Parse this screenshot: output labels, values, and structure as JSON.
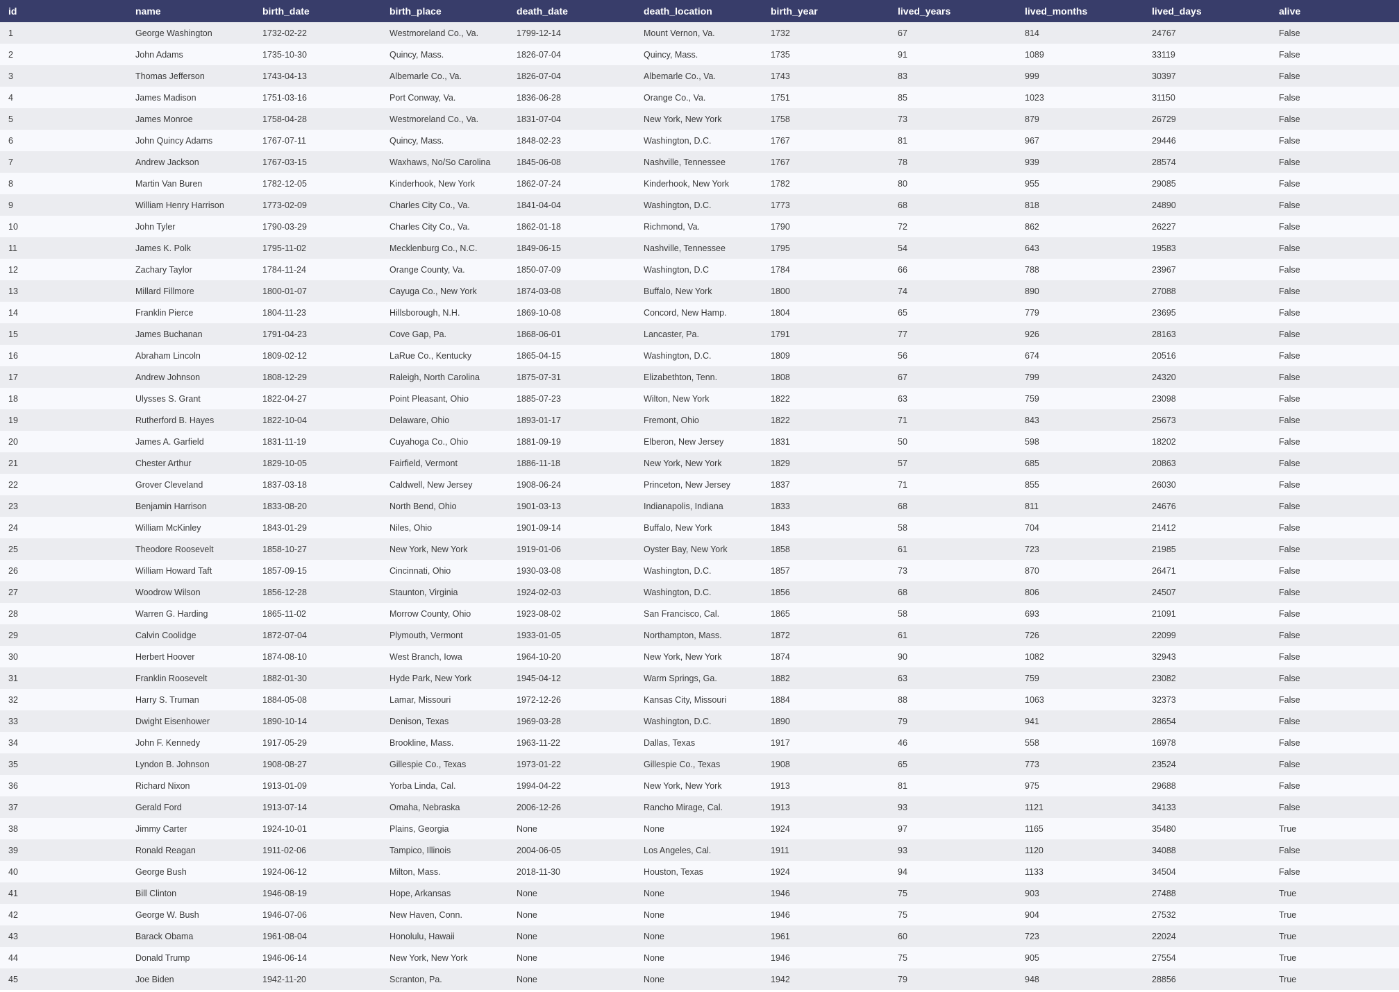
{
  "table": {
    "columns": [
      "id",
      "name",
      "birth_date",
      "birth_place",
      "death_date",
      "death_location",
      "birth_year",
      "lived_years",
      "lived_months",
      "lived_days",
      "alive"
    ],
    "rows": [
      [
        "1",
        "George Washington",
        "1732-02-22",
        "Westmoreland Co., Va.",
        "1799-12-14",
        "Mount Vernon, Va.",
        "1732",
        "67",
        "814",
        "24767",
        "False"
      ],
      [
        "2",
        "John Adams",
        "1735-10-30",
        "Quincy, Mass.",
        "1826-07-04",
        "Quincy, Mass.",
        "1735",
        "91",
        "1089",
        "33119",
        "False"
      ],
      [
        "3",
        "Thomas Jefferson",
        "1743-04-13",
        "Albemarle Co., Va.",
        "1826-07-04",
        "Albemarle Co., Va.",
        "1743",
        "83",
        "999",
        "30397",
        "False"
      ],
      [
        "4",
        "James Madison",
        "1751-03-16",
        "Port Conway, Va.",
        "1836-06-28",
        "Orange Co., Va.",
        "1751",
        "85",
        "1023",
        "31150",
        "False"
      ],
      [
        "5",
        "James Monroe",
        "1758-04-28",
        "Westmoreland Co., Va.",
        "1831-07-04",
        "New York, New York",
        "1758",
        "73",
        "879",
        "26729",
        "False"
      ],
      [
        "6",
        "John Quincy Adams",
        "1767-07-11",
        "Quincy, Mass.",
        "1848-02-23",
        "Washington, D.C.",
        "1767",
        "81",
        "967",
        "29446",
        "False"
      ],
      [
        "7",
        "Andrew Jackson",
        "1767-03-15",
        "Waxhaws, No/So Carolina",
        "1845-06-08",
        "Nashville, Tennessee",
        "1767",
        "78",
        "939",
        "28574",
        "False"
      ],
      [
        "8",
        "Martin Van Buren",
        "1782-12-05",
        "Kinderhook, New York",
        "1862-07-24",
        "Kinderhook, New York",
        "1782",
        "80",
        "955",
        "29085",
        "False"
      ],
      [
        "9",
        "William Henry Harrison",
        "1773-02-09",
        "Charles City Co., Va.",
        "1841-04-04",
        "Washington, D.C.",
        "1773",
        "68",
        "818",
        "24890",
        "False"
      ],
      [
        "10",
        "John Tyler",
        "1790-03-29",
        "Charles City Co., Va.",
        "1862-01-18",
        "Richmond, Va.",
        "1790",
        "72",
        "862",
        "26227",
        "False"
      ],
      [
        "11",
        "James K. Polk",
        "1795-11-02",
        "Mecklenburg Co., N.C.",
        "1849-06-15",
        "Nashville, Tennessee",
        "1795",
        "54",
        "643",
        "19583",
        "False"
      ],
      [
        "12",
        "Zachary Taylor",
        "1784-11-24",
        "Orange County, Va.",
        "1850-07-09",
        "Washington, D.C",
        "1784",
        "66",
        "788",
        "23967",
        "False"
      ],
      [
        "13",
        "Millard Fillmore",
        "1800-01-07",
        "Cayuga Co., New York",
        "1874-03-08",
        "Buffalo, New York",
        "1800",
        "74",
        "890",
        "27088",
        "False"
      ],
      [
        "14",
        "Franklin Pierce",
        "1804-11-23",
        "Hillsborough, N.H.",
        "1869-10-08",
        "Concord, New Hamp.",
        "1804",
        "65",
        "779",
        "23695",
        "False"
      ],
      [
        "15",
        "James Buchanan",
        "1791-04-23",
        "Cove Gap, Pa.",
        "1868-06-01",
        "Lancaster, Pa.",
        "1791",
        "77",
        "926",
        "28163",
        "False"
      ],
      [
        "16",
        "Abraham Lincoln",
        "1809-02-12",
        "LaRue Co., Kentucky",
        "1865-04-15",
        "Washington, D.C.",
        "1809",
        "56",
        "674",
        "20516",
        "False"
      ],
      [
        "17",
        "Andrew Johnson",
        "1808-12-29",
        "Raleigh, North Carolina",
        "1875-07-31",
        "Elizabethton, Tenn.",
        "1808",
        "67",
        "799",
        "24320",
        "False"
      ],
      [
        "18",
        "Ulysses S. Grant",
        "1822-04-27",
        "Point Pleasant, Ohio",
        "1885-07-23",
        "Wilton, New York",
        "1822",
        "63",
        "759",
        "23098",
        "False"
      ],
      [
        "19",
        "Rutherford B. Hayes",
        "1822-10-04",
        "Delaware, Ohio",
        "1893-01-17",
        "Fremont, Ohio",
        "1822",
        "71",
        "843",
        "25673",
        "False"
      ],
      [
        "20",
        "James A. Garfield",
        "1831-11-19",
        "Cuyahoga Co., Ohio",
        "1881-09-19",
        "Elberon, New Jersey",
        "1831",
        "50",
        "598",
        "18202",
        "False"
      ],
      [
        "21",
        "Chester Arthur",
        "1829-10-05",
        "Fairfield, Vermont",
        "1886-11-18",
        "New York, New York",
        "1829",
        "57",
        "685",
        "20863",
        "False"
      ],
      [
        "22",
        "Grover Cleveland",
        "1837-03-18",
        "Caldwell, New Jersey",
        "1908-06-24",
        "Princeton, New Jersey",
        "1837",
        "71",
        "855",
        "26030",
        "False"
      ],
      [
        "23",
        "Benjamin Harrison",
        "1833-08-20",
        "North Bend, Ohio",
        "1901-03-13",
        "Indianapolis, Indiana",
        "1833",
        "68",
        "811",
        "24676",
        "False"
      ],
      [
        "24",
        "William McKinley",
        "1843-01-29",
        "Niles, Ohio",
        "1901-09-14",
        "Buffalo, New York",
        "1843",
        "58",
        "704",
        "21412",
        "False"
      ],
      [
        "25",
        "Theodore Roosevelt",
        "1858-10-27",
        "New York, New York",
        "1919-01-06",
        "Oyster Bay, New York",
        "1858",
        "61",
        "723",
        "21985",
        "False"
      ],
      [
        "26",
        "William Howard Taft",
        "1857-09-15",
        "Cincinnati, Ohio",
        "1930-03-08",
        "Washington, D.C.",
        "1857",
        "73",
        "870",
        "26471",
        "False"
      ],
      [
        "27",
        "Woodrow Wilson",
        "1856-12-28",
        "Staunton, Virginia",
        "1924-02-03",
        "Washington, D.C.",
        "1856",
        "68",
        "806",
        "24507",
        "False"
      ],
      [
        "28",
        "Warren G. Harding",
        "1865-11-02",
        "Morrow County, Ohio",
        "1923-08-02",
        "San Francisco, Cal.",
        "1865",
        "58",
        "693",
        "21091",
        "False"
      ],
      [
        "29",
        "Calvin Coolidge",
        "1872-07-04",
        "Plymouth, Vermont",
        "1933-01-05",
        "Northampton, Mass.",
        "1872",
        "61",
        "726",
        "22099",
        "False"
      ],
      [
        "30",
        "Herbert Hoover",
        "1874-08-10",
        "West Branch, Iowa",
        "1964-10-20",
        "New York, New York",
        "1874",
        "90",
        "1082",
        "32943",
        "False"
      ],
      [
        "31",
        "Franklin Roosevelt",
        "1882-01-30",
        "Hyde Park, New York",
        "1945-04-12",
        "Warm Springs, Ga.",
        "1882",
        "63",
        "759",
        "23082",
        "False"
      ],
      [
        "32",
        "Harry S. Truman",
        "1884-05-08",
        "Lamar, Missouri",
        "1972-12-26",
        "Kansas City, Missouri",
        "1884",
        "88",
        "1063",
        "32373",
        "False"
      ],
      [
        "33",
        "Dwight Eisenhower",
        "1890-10-14",
        "Denison, Texas",
        "1969-03-28",
        "Washington, D.C.",
        "1890",
        "79",
        "941",
        "28654",
        "False"
      ],
      [
        "34",
        "John F. Kennedy",
        "1917-05-29",
        "Brookline, Mass.",
        "1963-11-22",
        "Dallas, Texas",
        "1917",
        "46",
        "558",
        "16978",
        "False"
      ],
      [
        "35",
        "Lyndon B. Johnson",
        "1908-08-27",
        "Gillespie Co., Texas",
        "1973-01-22",
        "Gillespie Co., Texas",
        "1908",
        "65",
        "773",
        "23524",
        "False"
      ],
      [
        "36",
        "Richard Nixon",
        "1913-01-09",
        "Yorba Linda, Cal.",
        "1994-04-22",
        "New York, New York",
        "1913",
        "81",
        "975",
        "29688",
        "False"
      ],
      [
        "37",
        "Gerald Ford",
        "1913-07-14",
        "Omaha, Nebraska",
        "2006-12-26",
        "Rancho Mirage, Cal.",
        "1913",
        "93",
        "1121",
        "34133",
        "False"
      ],
      [
        "38",
        "Jimmy Carter",
        "1924-10-01",
        "Plains, Georgia",
        "None",
        "None",
        "1924",
        "97",
        "1165",
        "35480",
        "True"
      ],
      [
        "39",
        "Ronald Reagan",
        "1911-02-06",
        "Tampico, Illinois",
        "2004-06-05",
        "Los Angeles, Cal.",
        "1911",
        "93",
        "1120",
        "34088",
        "False"
      ],
      [
        "40",
        "George Bush",
        "1924-06-12",
        "Milton, Mass.",
        "2018-11-30",
        "Houston, Texas",
        "1924",
        "94",
        "1133",
        "34504",
        "False"
      ],
      [
        "41",
        "Bill Clinton",
        "1946-08-19",
        "Hope, Arkansas",
        "None",
        "None",
        "1946",
        "75",
        "903",
        "27488",
        "True"
      ],
      [
        "42",
        "George W. Bush",
        "1946-07-06",
        "New Haven, Conn.",
        "None",
        "None",
        "1946",
        "75",
        "904",
        "27532",
        "True"
      ],
      [
        "43",
        "Barack Obama",
        "1961-08-04",
        "Honolulu, Hawaii",
        "None",
        "None",
        "1961",
        "60",
        "723",
        "22024",
        "True"
      ],
      [
        "44",
        "Donald Trump",
        "1946-06-14",
        "New York, New York",
        "None",
        "None",
        "1946",
        "75",
        "905",
        "27554",
        "True"
      ],
      [
        "45",
        "Joe Biden",
        "1942-11-20",
        "Scranton, Pa.",
        "None",
        "None",
        "1942",
        "79",
        "948",
        "28856",
        "True"
      ]
    ]
  },
  "colors": {
    "header_bg": "#383d6a",
    "header_text": "#ffffff",
    "row_odd_bg": "#ebecf0",
    "row_even_bg": "#f8f9fd",
    "cell_text": "#3a3a3a"
  }
}
